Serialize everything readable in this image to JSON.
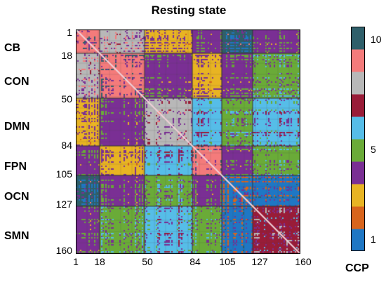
{
  "chart_data": {
    "type": "heatmap",
    "title": "Resting state",
    "rows": 160,
    "cols": 160,
    "row_ticks": [
      "1",
      "18",
      "50",
      "84",
      "105",
      "127",
      "160"
    ],
    "col_ticks": [
      "1",
      "18",
      "50",
      "84",
      "105",
      "127",
      "160"
    ],
    "tick_values": [
      1,
      18,
      50,
      84,
      105,
      127,
      160
    ],
    "networks": [
      {
        "name": "CB",
        "start": 1,
        "end": 17
      },
      {
        "name": "CON",
        "start": 18,
        "end": 49
      },
      {
        "name": "DMN",
        "start": 50,
        "end": 83
      },
      {
        "name": "FPN",
        "start": 84,
        "end": 104
      },
      {
        "name": "OCN",
        "start": 105,
        "end": 126
      },
      {
        "name": "SMN",
        "start": 127,
        "end": 160
      }
    ],
    "colorbar": {
      "label": "CCP",
      "min": 1,
      "max": 10,
      "tick_labels": [
        "1",
        "5",
        "10"
      ],
      "tick_values": [
        1,
        5,
        10
      ],
      "colors": [
        "#1f77c4",
        "#d8641c",
        "#e8b423",
        "#7a2f94",
        "#6aab38",
        "#56bde8",
        "#991c38",
        "#b8b8b8",
        "#f47b7b",
        "#2f5f6a"
      ]
    },
    "diagonal_color": "#f0d0d8",
    "grid_color": "#444444"
  }
}
